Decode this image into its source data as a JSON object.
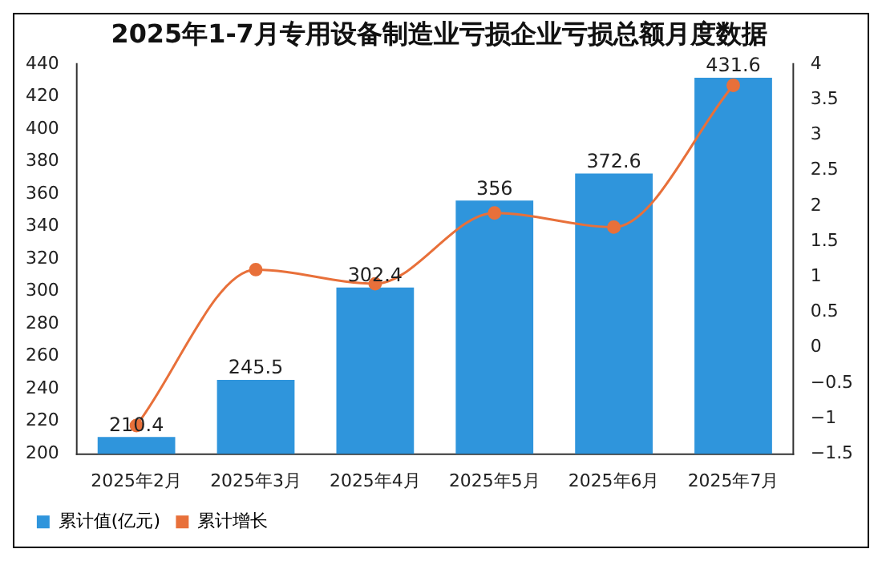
{
  "chart_data": {
    "type": "bar",
    "title": "2025年1-7月专用设备制造业亏损企业亏损总额月度数据",
    "categories": [
      "2025年2月",
      "2025年3月",
      "2025年4月",
      "2025年5月",
      "2025年6月",
      "2025年7月"
    ],
    "series": [
      {
        "name": "累计值(亿元)",
        "color": "#2f95dc",
        "values": [
          210.4,
          245.5,
          302.4,
          356,
          372.6,
          431.6
        ],
        "value_labels": [
          "210.4",
          "245.5",
          "302.4",
          "356",
          "372.6",
          "431.6"
        ]
      },
      {
        "name": "累计增长",
        "type": "line",
        "axis": "y2",
        "color": "#e8703a",
        "values": [
          -1.1,
          1.1,
          0.9,
          1.9,
          1.7,
          3.7
        ]
      }
    ],
    "ylim": [
      200,
      440
    ],
    "yticks": [
      200,
      220,
      240,
      260,
      280,
      300,
      320,
      340,
      360,
      380,
      400,
      420,
      440
    ],
    "y2lim": [
      -1.5,
      4
    ],
    "y2ticks": [
      {
        "value": -1.5,
        "label": "−1.5"
      },
      {
        "value": -1,
        "label": "−1"
      },
      {
        "value": -0.5,
        "label": "−0.5"
      },
      0,
      0.5,
      1,
      1.5,
      2,
      2.5,
      3,
      3.5,
      4
    ],
    "grid": false,
    "legend": "bottom left",
    "marker": "circle",
    "line_style": "solid"
  }
}
